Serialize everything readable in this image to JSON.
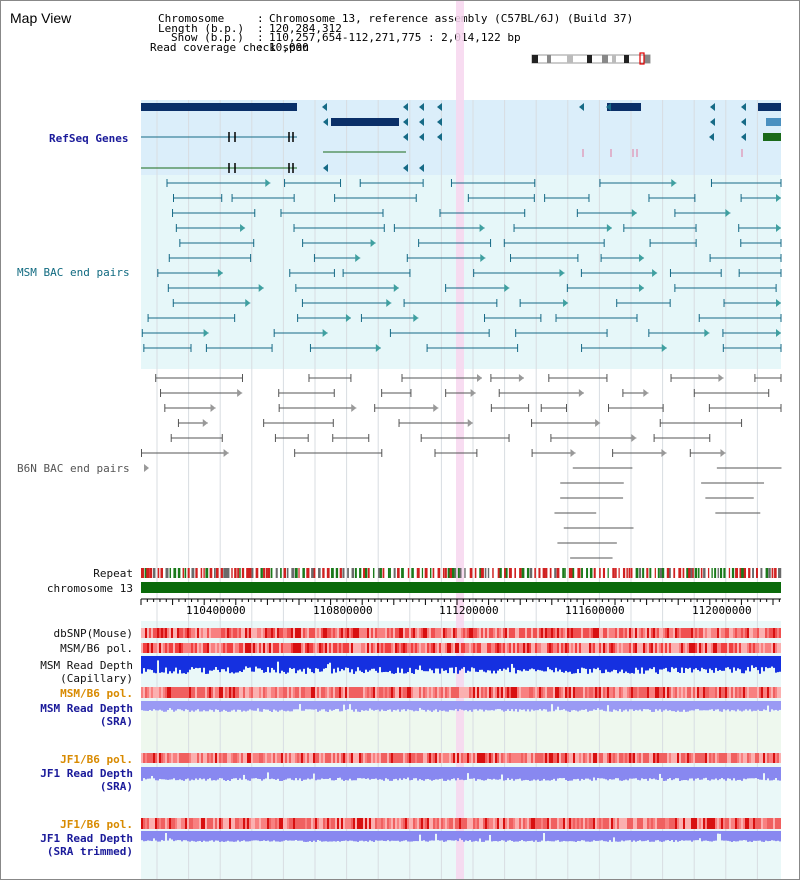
{
  "title": "Map View",
  "header": {
    "chromosome_label": "Chromosome",
    "chromosome_value": "Chromosome 13, reference assembly (C57BL/6J) (Build 37)",
    "length_label": "Length (b.p.)",
    "length_value": "120,284,312",
    "show_label": "Show (b.p.)",
    "show_value": "110,257,654-112,271,775 : 2,014,122 bp",
    "coverage_label": "Read coverage check span",
    "coverage_value": "10,000"
  },
  "tracks": {
    "refseq": "RefSeq Genes",
    "msm_bac": "MSM BAC end pairs",
    "b6n_bac": "B6N BAC end pairs",
    "repeat": "Repeat",
    "chromosome": "chromosome 13"
  },
  "axis": {
    "ticks": [
      "110400000",
      "110800000",
      "111200000",
      "111600000",
      "112000000"
    ]
  },
  "lower_tracks": {
    "dbsnp": "dbSNP(Mouse)",
    "msm_b6_pol": "MSM/B6 pol.",
    "msm_depth_cap_1": "MSM Read Depth",
    "msm_depth_cap_2": "(Capillary)",
    "msm_b6_pol_2": "MSM/B6 pol.",
    "msm_depth_sra_1": "MSM Read Depth",
    "msm_depth_sra_2": "(SRA)",
    "jf1_b6_pol": "JF1/B6 pol.",
    "jf1_depth_1": "JF1 Read Depth",
    "jf1_depth_2": "(SRA)",
    "jf1_b6_pol_2": "JF1/B6 pol.",
    "jf1_trim_1": "JF1 Read Depth",
    "jf1_trim_2": "(SRA trimmed)"
  },
  "colors": {
    "refseq_bg": "#dbeefa",
    "bac_bg": "#e6f7f9",
    "gene": "#0a2f68",
    "teal": "#166a86",
    "green": "#1a6a1a",
    "gray": "#555555",
    "snp": "#e84040",
    "depth_blue": "#1530e0",
    "depth_light": "#8888f0",
    "highlight": "#f7d6ee",
    "chrom_bar": "#0a6a0a"
  }
}
